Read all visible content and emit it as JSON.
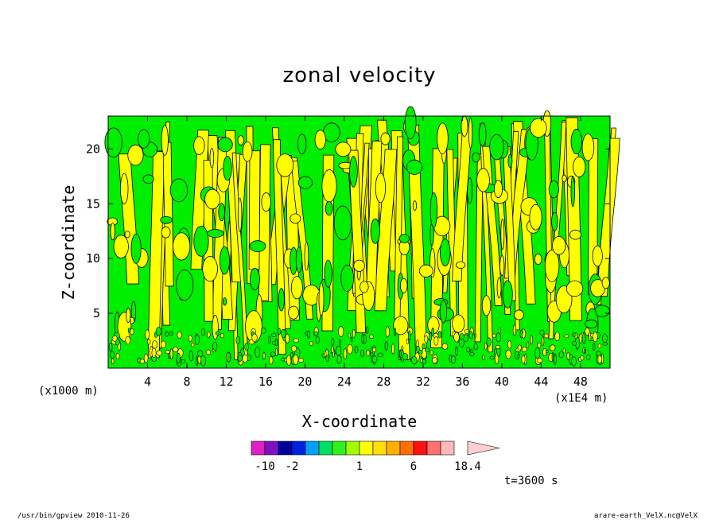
{
  "chart_data": {
    "type": "heatmap",
    "title": "zonal velocity",
    "xlabel": "X-coordinate",
    "ylabel": "Z-coordinate",
    "x_unit_label": "(x1E4 m)",
    "y_unit_label": "(x1000 m)",
    "xlim": [
      0,
      51
    ],
    "ylim": [
      0,
      23
    ],
    "x_ticks": [
      4,
      8,
      12,
      16,
      20,
      24,
      28,
      32,
      36,
      40,
      44,
      48
    ],
    "y_ticks": [
      5,
      10,
      15,
      20
    ],
    "colorbar": {
      "levels": [
        -14,
        -10,
        -6,
        -2,
        -1.4,
        -0.8,
        -0.2,
        0.4,
        1,
        1.6,
        2.2,
        2.8,
        6,
        9.2,
        12.4,
        15.4,
        18.4
      ],
      "colors": [
        "#e020c0",
        "#8010c0",
        "#0000a0",
        "#0020e0",
        "#00a0ff",
        "#00e060",
        "#30f020",
        "#a0ff00",
        "#ffff00",
        "#ffe000",
        "#ffb000",
        "#ff7000",
        "#ff1010",
        "#ff7070",
        "#ffb8b8",
        "#ffd0d0"
      ],
      "labels": [
        {
          "value": -10,
          "text": "-10"
        },
        {
          "value": -2,
          "text": "-2"
        },
        {
          "value": 1,
          "text": "1"
        },
        {
          "value": 6,
          "text": "6"
        },
        {
          "value": 18.4,
          "text": "18.4"
        }
      ]
    },
    "field": {
      "negative_color": "#00ee00",
      "positive_color": "#ffff00",
      "contour_color": "#000000"
    },
    "grid": false
  },
  "annotations": {
    "time": "t=3600 s",
    "footer_left": "/usr/bin/gpview  2010-11-26",
    "footer_right": "arare-earth_VelX.nc@VelX"
  }
}
